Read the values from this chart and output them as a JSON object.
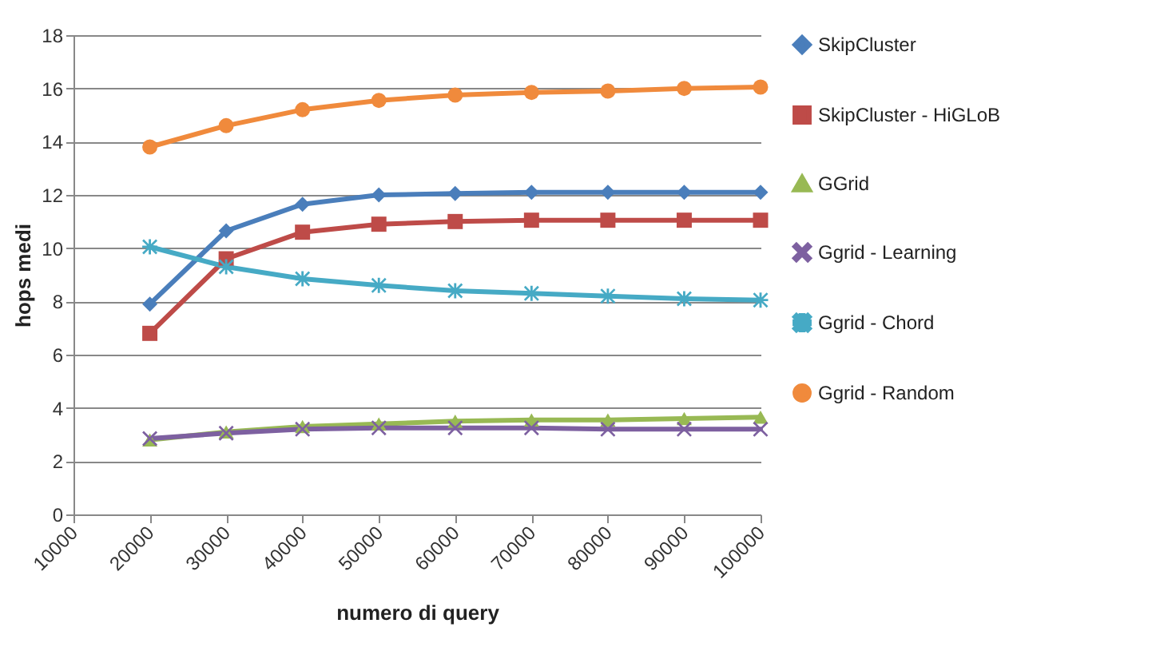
{
  "chart_data": {
    "type": "line",
    "xlabel": "numero di query",
    "ylabel": "hops medi",
    "x": [
      20000,
      30000,
      40000,
      50000,
      60000,
      70000,
      80000,
      90000,
      100000
    ],
    "xlim": [
      10000,
      100000
    ],
    "xticks": [
      10000,
      20000,
      30000,
      40000,
      50000,
      60000,
      70000,
      80000,
      90000,
      100000
    ],
    "ylim": [
      0,
      18
    ],
    "yticks": [
      0,
      2,
      4,
      6,
      8,
      10,
      12,
      14,
      16,
      18
    ],
    "grid": "y",
    "legend": "right",
    "series": [
      {
        "name": "SkipCluster",
        "color": "#4a7ebb",
        "marker": "diamond",
        "values": [
          7.9,
          10.65,
          11.65,
          12.0,
          12.05,
          12.1,
          12.1,
          12.1,
          12.1
        ]
      },
      {
        "name": "SkipCluster - HiGLoB",
        "color": "#be4b48",
        "marker": "square",
        "values": [
          6.8,
          9.6,
          10.6,
          10.9,
          11.0,
          11.05,
          11.05,
          11.05,
          11.05
        ]
      },
      {
        "name": "GGrid",
        "color": "#98b954",
        "marker": "triangle",
        "values": [
          2.8,
          3.1,
          3.3,
          3.4,
          3.5,
          3.55,
          3.55,
          3.6,
          3.65
        ]
      },
      {
        "name": "Ggrid - Learning",
        "color": "#7d60a0",
        "marker": "cross",
        "values": [
          2.85,
          3.05,
          3.2,
          3.25,
          3.25,
          3.25,
          3.2,
          3.2,
          3.2
        ]
      },
      {
        "name": "Ggrid - Chord",
        "color": "#46aac5",
        "marker": "star",
        "values": [
          10.05,
          9.3,
          8.85,
          8.6,
          8.4,
          8.3,
          8.2,
          8.1,
          8.05
        ]
      },
      {
        "name": "Ggrid - Random",
        "color": "#f08a3c",
        "marker": "circle",
        "values": [
          13.8,
          14.6,
          15.2,
          15.55,
          15.75,
          15.85,
          15.9,
          16.0,
          16.05
        ]
      }
    ]
  }
}
